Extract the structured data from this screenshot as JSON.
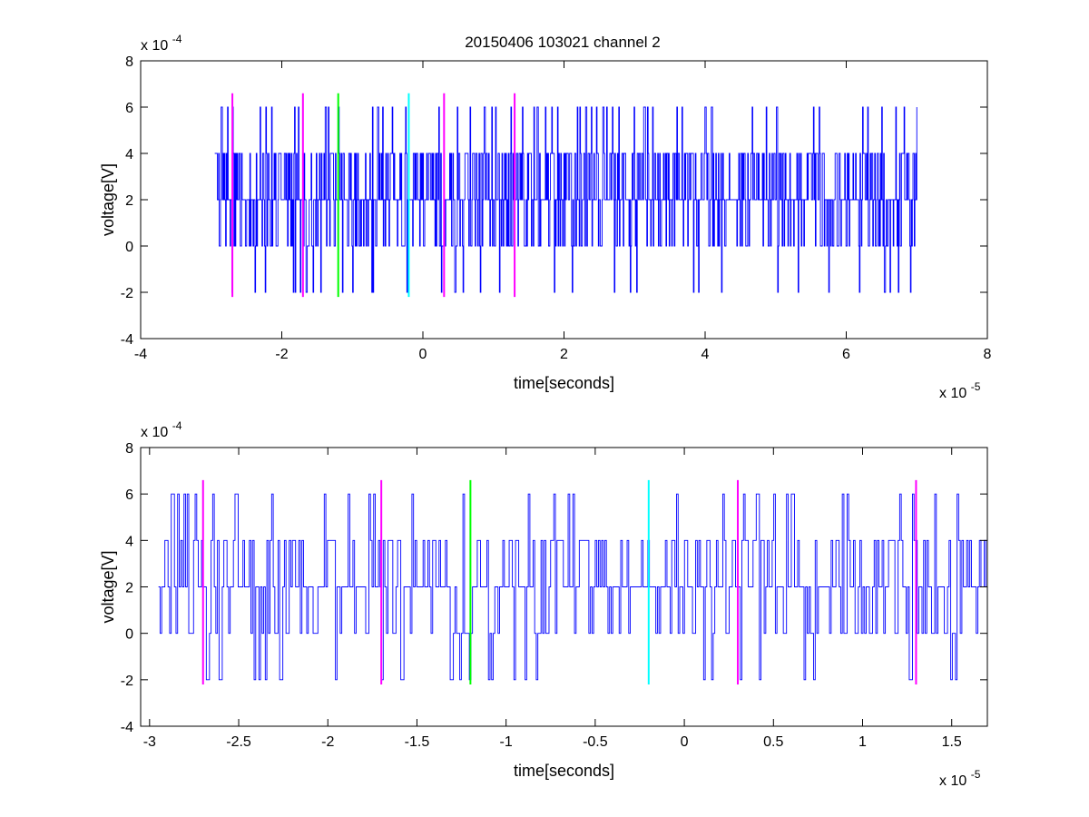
{
  "figure": {
    "title": "20150406 103021 channel 2",
    "background": "#ffffff"
  },
  "colors": {
    "signal": "#0000ff",
    "marker_magenta": "#ff00ff",
    "marker_green": "#00ff00",
    "marker_cyan": "#00ffff",
    "axes": "#000000"
  },
  "chart_data": [
    {
      "type": "line",
      "title": "20150406 103021 channel 2",
      "xlabel": "time[seconds]",
      "ylabel": "voltage[V]",
      "x_exponent_label": "x 10",
      "x_exponent": "-5",
      "y_exponent_label": "x 10",
      "y_exponent": "-4",
      "xlim": [
        -4e-05,
        8e-05
      ],
      "ylim": [
        -0.0004,
        0.0008
      ],
      "x_ticks": [
        -4e-05,
        -2e-05,
        0,
        2e-05,
        4e-05,
        6e-05,
        8e-05
      ],
      "x_tick_labels": [
        "-4",
        "-2",
        "0",
        "2",
        "4",
        "6",
        "8"
      ],
      "y_ticks": [
        -0.0004,
        -0.0002,
        0,
        0.0002,
        0.0004,
        0.0006,
        0.0008
      ],
      "y_tick_labels": [
        "-4",
        "-2",
        "0",
        "2",
        "4",
        "6",
        "8"
      ],
      "grid": false,
      "legend": "none",
      "series": [
        {
          "sampling": "synthetic noisy signal quantized to 2e-4 V steps",
          "x_start": -2.95e-05,
          "x_end": 7e-05,
          "levels": [
            -0.0002,
            0,
            0.0002,
            0.0004,
            0.0006
          ],
          "baseline": 0.0002
        }
      ],
      "markers": [
        {
          "x": -2.7e-05,
          "color": "#ff00ff",
          "ymin": -0.00022,
          "ymax": 0.00066
        },
        {
          "x": -1.7e-05,
          "color": "#ff00ff",
          "ymin": -0.00022,
          "ymax": 0.00066
        },
        {
          "x": -1.2e-05,
          "color": "#00ff00",
          "ymin": -0.00022,
          "ymax": 0.00066
        },
        {
          "x": -2e-06,
          "color": "#00ffff",
          "ymin": -0.00022,
          "ymax": 0.00066
        },
        {
          "x": 3e-06,
          "color": "#ff00ff",
          "ymin": -0.00022,
          "ymax": 0.00066
        },
        {
          "x": 1.3e-05,
          "color": "#ff00ff",
          "ymin": -0.00022,
          "ymax": 0.00066
        }
      ]
    },
    {
      "type": "line",
      "title": "",
      "xlabel": "time[seconds]",
      "ylabel": "voltage[V]",
      "x_exponent_label": "x 10",
      "x_exponent": "-5",
      "y_exponent_label": "x 10",
      "y_exponent": "-4",
      "xlim": [
        -3.05e-05,
        1.7e-05
      ],
      "ylim": [
        -0.0004,
        0.0008
      ],
      "x_ticks": [
        -3e-05,
        -2.5e-05,
        -2e-05,
        -1.5e-05,
        -1e-05,
        -5e-06,
        0,
        5e-06,
        1e-05,
        1.5e-05
      ],
      "x_tick_labels": [
        "-3",
        "-2.5",
        "-2",
        "-1.5",
        "-1",
        "-0.5",
        "0",
        "0.5",
        "1",
        "1.5"
      ],
      "y_ticks": [
        -0.0004,
        -0.0002,
        0,
        0.0002,
        0.0004,
        0.0006,
        0.0008
      ],
      "y_tick_labels": [
        "-4",
        "-2",
        "0",
        "2",
        "4",
        "6",
        "8"
      ],
      "grid": false,
      "legend": "none",
      "series": [
        {
          "sampling": "synthetic noisy signal quantized to 2e-4 V steps",
          "x_start": -2.95e-05,
          "x_end": 1.7e-05,
          "levels": [
            -0.0002,
            0,
            0.0002,
            0.0004,
            0.0006
          ],
          "baseline": 0.0002
        }
      ],
      "markers": [
        {
          "x": -2.7e-05,
          "color": "#ff00ff",
          "ymin": -0.00022,
          "ymax": 0.00066
        },
        {
          "x": -1.7e-05,
          "color": "#ff00ff",
          "ymin": -0.00022,
          "ymax": 0.00066
        },
        {
          "x": -1.2e-05,
          "color": "#00ff00",
          "ymin": -0.00022,
          "ymax": 0.00066
        },
        {
          "x": -2e-06,
          "color": "#00ffff",
          "ymin": -0.00022,
          "ymax": 0.00066
        },
        {
          "x": 3e-06,
          "color": "#ff00ff",
          "ymin": -0.00022,
          "ymax": 0.00066
        },
        {
          "x": 1.3e-05,
          "color": "#ff00ff",
          "ymin": -0.00022,
          "ymax": 0.00066
        }
      ]
    }
  ]
}
